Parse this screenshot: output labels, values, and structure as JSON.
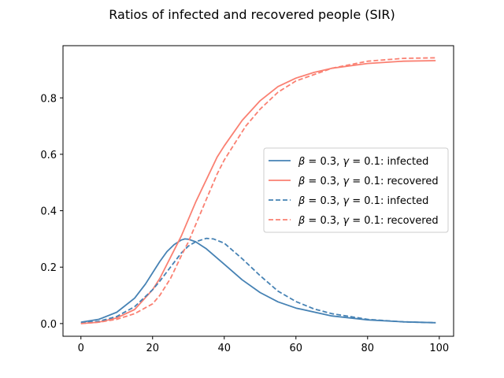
{
  "chart_data": {
    "type": "line",
    "title": "Ratios of infected and recovered people (SIR)",
    "xlabel": "",
    "ylabel": "",
    "xlim": [
      -5,
      104
    ],
    "ylim": [
      -0.045,
      0.985
    ],
    "x_ticks": [
      0,
      20,
      40,
      60,
      80,
      100
    ],
    "y_ticks": [
      0.0,
      0.2,
      0.4,
      0.6,
      0.8
    ],
    "grid": false,
    "legend_position": "center-right",
    "series": [
      {
        "name": "β = 0.3, γ = 0.1: infected",
        "legend_parts": [
          [
            "β",
            true
          ],
          [
            " = 0.3, ",
            false
          ],
          [
            "γ",
            true
          ],
          [
            " = 0.1: infected",
            false
          ]
        ],
        "color": "#4682b4",
        "style": "solid",
        "x": [
          0,
          5,
          10,
          15,
          18,
          20,
          22,
          24,
          26,
          28,
          29,
          30,
          32,
          35,
          40,
          45,
          50,
          55,
          60,
          70,
          80,
          90,
          99
        ],
        "y": [
          0.005,
          0.015,
          0.04,
          0.09,
          0.14,
          0.18,
          0.22,
          0.255,
          0.28,
          0.296,
          0.3,
          0.299,
          0.29,
          0.265,
          0.21,
          0.155,
          0.11,
          0.077,
          0.055,
          0.027,
          0.013,
          0.006,
          0.003
        ]
      },
      {
        "name": "β = 0.3, γ = 0.1: recovered",
        "legend_parts": [
          [
            "β",
            true
          ],
          [
            " = 0.3, ",
            false
          ],
          [
            "γ",
            true
          ],
          [
            " = 0.1: recovered",
            false
          ]
        ],
        "color": "#fa8072",
        "style": "solid",
        "x": [
          0,
          5,
          10,
          15,
          20,
          22,
          24,
          26,
          28,
          30,
          32,
          35,
          38,
          40,
          45,
          50,
          55,
          60,
          65,
          70,
          80,
          90,
          99
        ],
        "y": [
          0.0,
          0.005,
          0.02,
          0.05,
          0.12,
          0.16,
          0.21,
          0.26,
          0.31,
          0.37,
          0.43,
          0.51,
          0.59,
          0.63,
          0.72,
          0.79,
          0.84,
          0.87,
          0.89,
          0.905,
          0.922,
          0.93,
          0.932
        ]
      },
      {
        "name": "β = 0.3, γ = 0.1: infected",
        "legend_parts": [
          [
            "β",
            true
          ],
          [
            " = 0.3, ",
            false
          ],
          [
            "γ",
            true
          ],
          [
            " = 0.1: infected",
            false
          ]
        ],
        "color": "#4682b4",
        "style": "dashed",
        "x": [
          0,
          5,
          10,
          15,
          20,
          22,
          25,
          28,
          30,
          32,
          35,
          37,
          40,
          45,
          50,
          55,
          60,
          65,
          70,
          80,
          90,
          99
        ],
        "y": [
          0.003,
          0.008,
          0.025,
          0.06,
          0.12,
          0.15,
          0.2,
          0.25,
          0.275,
          0.29,
          0.302,
          0.3,
          0.285,
          0.23,
          0.17,
          0.115,
          0.078,
          0.052,
          0.035,
          0.015,
          0.006,
          0.003
        ]
      },
      {
        "name": "β = 0.3, γ = 0.1: recovered",
        "legend_parts": [
          [
            "β",
            true
          ],
          [
            " = 0.3, ",
            false
          ],
          [
            "γ",
            true
          ],
          [
            " = 0.1: recovered",
            false
          ]
        ],
        "color": "#fa8072",
        "style": "dashed",
        "x": [
          0,
          5,
          10,
          15,
          20,
          22,
          25,
          28,
          30,
          32,
          35,
          38,
          40,
          43,
          46,
          50,
          55,
          60,
          70,
          80,
          90,
          99
        ],
        "y": [
          0.0,
          0.005,
          0.015,
          0.035,
          0.07,
          0.1,
          0.16,
          0.24,
          0.29,
          0.35,
          0.44,
          0.53,
          0.58,
          0.64,
          0.7,
          0.76,
          0.82,
          0.86,
          0.905,
          0.93,
          0.94,
          0.942
        ]
      }
    ]
  }
}
